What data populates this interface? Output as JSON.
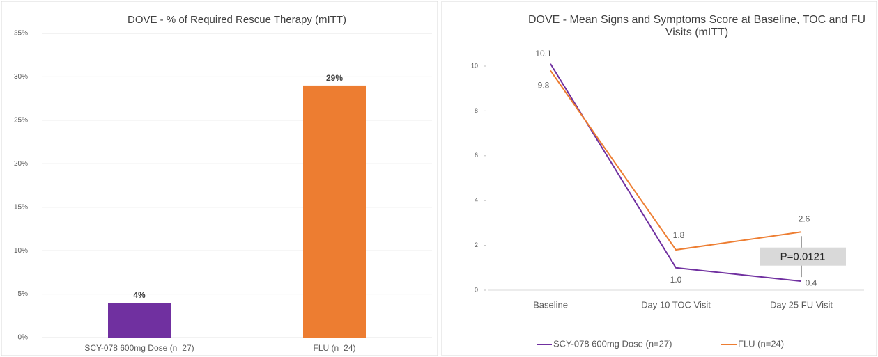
{
  "chart_data": [
    {
      "type": "bar",
      "title": "DOVE - % of Required Rescue Therapy (mITT)",
      "categories": [
        "SCY-078 600mg Dose (n=27)",
        "FLU (n=24)"
      ],
      "values": [
        4,
        29
      ],
      "value_labels": [
        "4%",
        "29%"
      ],
      "colors": [
        "#7030a0",
        "#ed7d31"
      ],
      "ylim": [
        0,
        35
      ],
      "yticks": [
        {
          "value": 0,
          "label": "0%"
        },
        {
          "value": 5,
          "label": "5%"
        },
        {
          "value": 10,
          "label": "10%"
        },
        {
          "value": 15,
          "label": "15%"
        },
        {
          "value": 20,
          "label": "20%"
        },
        {
          "value": 25,
          "label": "25%"
        },
        {
          "value": 30,
          "label": "30%"
        },
        {
          "value": 35,
          "label": "35%"
        }
      ],
      "grid": true
    },
    {
      "type": "line",
      "title": "DOVE - Mean Signs and Symptoms Score at Baseline, TOC and FU Visits (mITT)",
      "categories": [
        "Baseline",
        "Day 10 TOC Visit",
        "Day 25 FU Visit"
      ],
      "series": [
        {
          "name": "SCY-078 600mg Dose (n=27)",
          "color": "#7030a0",
          "values": [
            10.1,
            1.0,
            0.4
          ],
          "value_labels": [
            "10.1",
            "1.0",
            "0.4"
          ]
        },
        {
          "name": "FLU (n=24)",
          "color": "#ed7d31",
          "values": [
            9.8,
            1.8,
            2.6
          ],
          "value_labels": [
            "9.8",
            "1.8",
            "2.6"
          ]
        }
      ],
      "ylim": [
        0,
        10
      ],
      "yticks": [
        0,
        2,
        4,
        6,
        8,
        10
      ],
      "grid": false,
      "legend": "bottom",
      "annotation": "P=0.0121"
    }
  ]
}
